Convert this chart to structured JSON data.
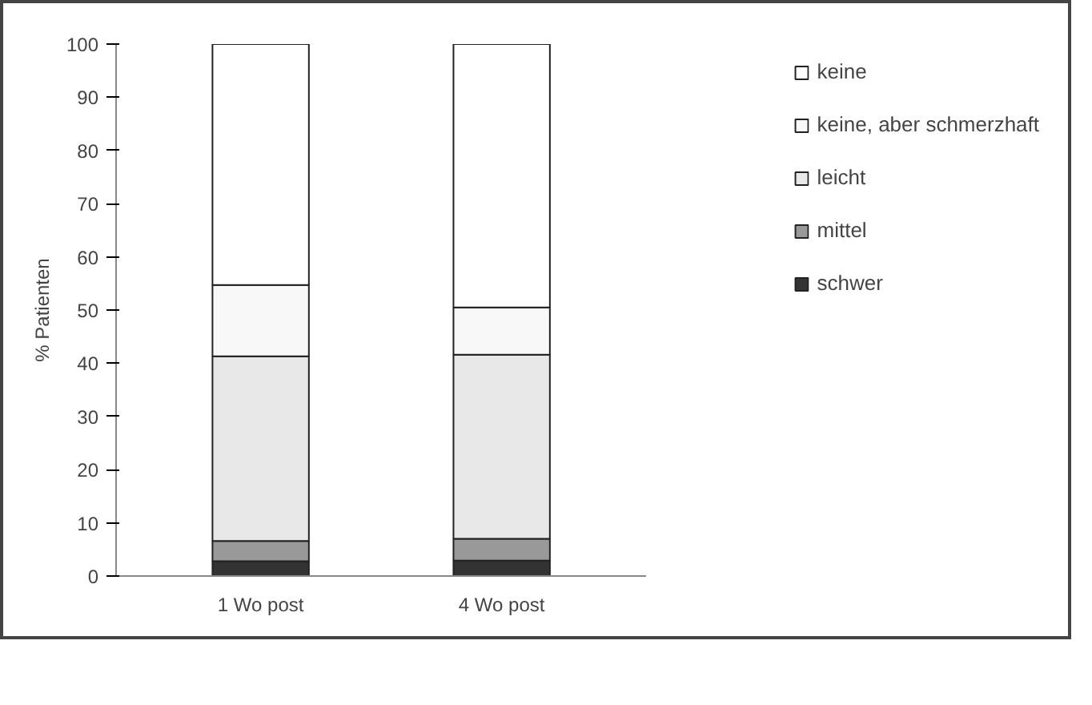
{
  "chart_data": {
    "type": "bar",
    "stacked": true,
    "ylabel": "% Patienten",
    "categories": [
      "1 Wo post",
      "4 Wo post"
    ],
    "series": [
      {
        "name": "schwer",
        "color": "#333333",
        "values": [
          2.8,
          2.9
        ]
      },
      {
        "name": "mittel",
        "color": "#999999",
        "values": [
          3.8,
          4.1
        ]
      },
      {
        "name": "leicht",
        "color": "#e8e8e8",
        "values": [
          34.7,
          34.6
        ]
      },
      {
        "name": "keine, aber schmerzhaft",
        "color": "#f8f8f8",
        "values": [
          13.4,
          8.9
        ]
      },
      {
        "name": "keine",
        "color": "#ffffff",
        "values": [
          45.3,
          49.5
        ]
      }
    ],
    "ylim": [
      0,
      100
    ],
    "yticks": [
      0,
      10,
      20,
      30,
      40,
      50,
      60,
      70,
      80,
      90,
      100
    ],
    "grid": false,
    "legend": "right"
  }
}
